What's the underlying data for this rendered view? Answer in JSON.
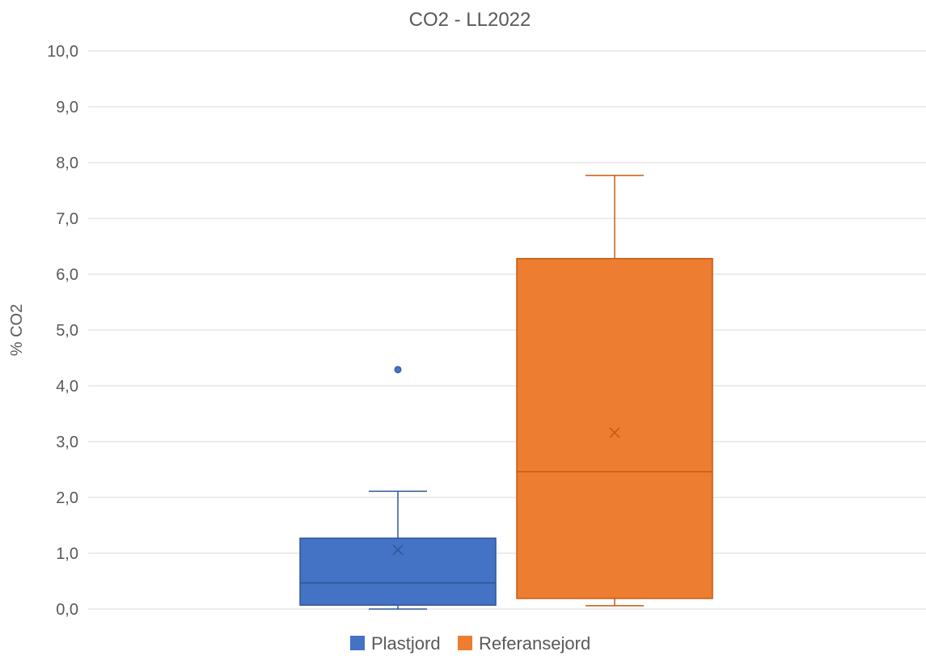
{
  "chart_data": {
    "type": "boxplot",
    "title": "CO2 - LL2022",
    "xlabel": "",
    "ylabel": "% CO2",
    "ylim": [
      0,
      10
    ],
    "yticks": [
      "0,0",
      "1,0",
      "2,0",
      "3,0",
      "4,0",
      "5,0",
      "6,0",
      "7,0",
      "8,0",
      "9,0",
      "10,0"
    ],
    "grid": true,
    "legend_position": "bottom",
    "series": [
      {
        "name": "Plastjord",
        "color": "#4472c4",
        "whisker_low": 0.0,
        "q1": 0.07,
        "median": 0.47,
        "q3": 1.27,
        "whisker_high": 2.11,
        "mean": 1.06,
        "outliers": [
          4.29
        ]
      },
      {
        "name": "Referansejord",
        "color": "#ed7d31",
        "whisker_low": 0.06,
        "q1": 0.19,
        "median": 2.46,
        "q3": 6.28,
        "whisker_high": 7.77,
        "mean": 3.16,
        "outliers": []
      }
    ]
  }
}
